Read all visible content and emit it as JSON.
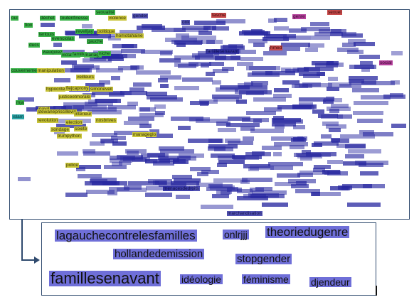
{
  "top_cloud": {
    "colors": {
      "blue": "#2828a0",
      "green": "#3bb34a",
      "yellow": "#c9c53a",
      "red": "#c84a4a",
      "magenta": "#b5409c",
      "cyan": "#2da6a8"
    },
    "words": [
      {
        "text": "oui",
        "group": "green"
      },
      {
        "text": "déchet",
        "group": "green"
      },
      {
        "text": "toutenfinesse",
        "group": "green"
      },
      {
        "text": "sexualité",
        "group": "green"
      },
      {
        "text": "violence",
        "group": "yellow"
      },
      {
        "text": "gender",
        "group": "blue"
      },
      {
        "text": "fasche",
        "group": "red"
      },
      {
        "text": "genre",
        "group": "magenta"
      },
      {
        "text": "sexuel",
        "group": "red"
      },
      {
        "text": "fion",
        "group": "green"
      },
      {
        "text": "terlouis",
        "group": "green"
      },
      {
        "text": "evenciolas",
        "group": "green"
      },
      {
        "text": "revelljay",
        "group": "green"
      },
      {
        "text": "politique",
        "group": "yellow"
      },
      {
        "text": "homotahaine",
        "group": "yellow"
      },
      {
        "text": "onk",
        "group": "blue"
      },
      {
        "text": "ducs",
        "group": "green"
      },
      {
        "text": "gauche",
        "group": "green"
      },
      {
        "text": "wauquiez",
        "group": "green"
      },
      {
        "text": "victature",
        "group": "green"
      },
      {
        "text": "famille",
        "group": "green"
      },
      {
        "text": "mariage",
        "group": "green"
      },
      {
        "text": "niche",
        "group": "green"
      },
      {
        "text": "famillesenavant",
        "group": "blue"
      },
      {
        "text": "hmed",
        "group": "red"
      },
      {
        "text": "social",
        "group": "magenta"
      },
      {
        "text": "couvernement",
        "group": "green"
      },
      {
        "text": "manipulation",
        "group": "yellow"
      },
      {
        "text": "veilleurs",
        "group": "yellow"
      },
      {
        "text": "hypocrite",
        "group": "yellow"
      },
      {
        "text": "flejcaprony",
        "group": "yellow"
      },
      {
        "text": "simoneveil",
        "group": "yellow"
      },
      {
        "text": "justiceetmorale",
        "group": "yellow"
      },
      {
        "text": "mja",
        "group": "green"
      },
      {
        "text": "payd",
        "group": "yellow"
      },
      {
        "text": "stewanepriscillevin",
        "group": "yellow"
      },
      {
        "text": "interieur",
        "group": "yellow"
      },
      {
        "text": "islam",
        "group": "cyan"
      },
      {
        "text": "revolution",
        "group": "yellow"
      },
      {
        "text": "election",
        "group": "yellow"
      },
      {
        "text": "nosbrives",
        "group": "yellow"
      },
      {
        "text": "sondage",
        "group": "yellow"
      },
      {
        "text": "soiete",
        "group": "yellow"
      },
      {
        "text": "trumpython",
        "group": "yellow"
      },
      {
        "text": "manageglo",
        "group": "yellow"
      },
      {
        "text": "police",
        "group": "yellow"
      },
      {
        "text": "menacesdedroits",
        "group": "blue"
      },
      {
        "text": "marchandisation",
        "group": "blue"
      }
    ]
  },
  "zoom": {
    "words": [
      {
        "text": "lagauchecontrelesfamilles"
      },
      {
        "text": "onlrjjj"
      },
      {
        "text": "theoriedugenre"
      },
      {
        "text": "hollandedemission"
      },
      {
        "text": "stopgender"
      },
      {
        "text": "famillesenavant"
      },
      {
        "text": "idéologie"
      },
      {
        "text": "féminisme"
      },
      {
        "text": "djendeur"
      }
    ]
  }
}
